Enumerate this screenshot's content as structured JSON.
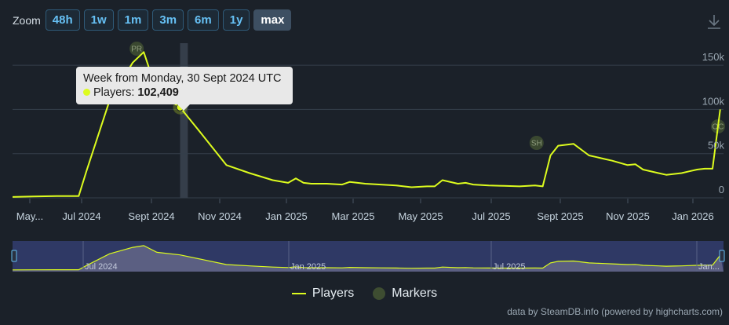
{
  "zoom": {
    "label": "Zoom",
    "buttons": [
      "48h",
      "1w",
      "1m",
      "3m",
      "6m",
      "1y",
      "max"
    ],
    "active": "max"
  },
  "colors": {
    "players": "#ddfc1e",
    "markers": "#3e4d31",
    "background": "#1b2129",
    "navigator_mask": "#333d70"
  },
  "tooltip": {
    "title": "Week from Monday, 30 Sept 2024 UTC",
    "series_label": "Players: ",
    "value": "102,409"
  },
  "legend": {
    "players": "Players",
    "markers": "Markers"
  },
  "credits": "data by SteamDB.info (powered by highcharts.com)",
  "icons": {
    "download": "download-icon"
  },
  "chart_data": {
    "type": "line",
    "y_ticks": [
      "150k",
      "100k",
      "50k",
      "0"
    ],
    "x_ticks": [
      "May...",
      "Jul 2024",
      "Sept 2024",
      "Nov 2024",
      "Jan 2025",
      "Mar 2025",
      "May 2025",
      "Jul 2025",
      "Sept 2025",
      "Nov 2025",
      "Jan 2026"
    ],
    "ylim": [
      0,
      175000
    ],
    "xlim": [
      "2024-05-01",
      "2026-02-05"
    ],
    "grid": true,
    "legend_position": "bottom-center",
    "highlight": {
      "start": "2024-09-30",
      "end": "2024-10-07"
    },
    "series": [
      {
        "name": "Players",
        "x": [
          "2024-05-01",
          "2024-05-20",
          "2024-06-10",
          "2024-06-30",
          "2024-07-07",
          "2024-07-28",
          "2024-08-18",
          "2024-08-28",
          "2024-09-09",
          "2024-09-30",
          "2024-10-21",
          "2024-11-11",
          "2024-12-02",
          "2024-12-23",
          "2025-01-06",
          "2025-01-13",
          "2025-01-20",
          "2025-01-27",
          "2025-02-10",
          "2025-02-24",
          "2025-03-03",
          "2025-03-17",
          "2025-03-31",
          "2025-04-14",
          "2025-04-28",
          "2025-05-12",
          "2025-05-19",
          "2025-05-26",
          "2025-06-09",
          "2025-06-16",
          "2025-06-23",
          "2025-07-07",
          "2025-07-21",
          "2025-08-04",
          "2025-08-18",
          "2025-08-25",
          "2025-09-01",
          "2025-09-08",
          "2025-09-22",
          "2025-10-06",
          "2025-10-13",
          "2025-10-20",
          "2025-10-27",
          "2025-11-10",
          "2025-11-17",
          "2025-11-24",
          "2025-12-08",
          "2025-12-15",
          "2025-12-22",
          "2025-12-29",
          "2026-01-05",
          "2026-01-12",
          "2026-01-19",
          "2026-01-26",
          "2026-02-02"
        ],
        "values": [
          1000,
          1500,
          2000,
          2000,
          30000,
          110000,
          153000,
          165000,
          120000,
          102409,
          70000,
          37000,
          28000,
          20000,
          17000,
          22000,
          17000,
          16000,
          16000,
          15000,
          18000,
          16000,
          15000,
          14000,
          12000,
          13000,
          13000,
          20000,
          16000,
          17000,
          15000,
          14000,
          13500,
          13000,
          14000,
          13000,
          48000,
          59000,
          61000,
          48000,
          46000,
          44000,
          42000,
          37000,
          38000,
          32000,
          28000,
          26000,
          27000,
          28000,
          30000,
          32000,
          33000,
          33000,
          100000
        ]
      }
    ],
    "markers": [
      {
        "label": "PR",
        "x": "2024-08-28"
      },
      {
        "label": "SH",
        "x": "2025-08-18"
      },
      {
        "label": "OC",
        "x": "2026-02-02"
      }
    ],
    "navigator": {
      "x_labels": [
        "Jul 2024",
        "Jan 2025",
        "Jul 2025",
        "Jan..."
      ],
      "selection": [
        "2024-05-01",
        "2026-02-05"
      ]
    }
  }
}
